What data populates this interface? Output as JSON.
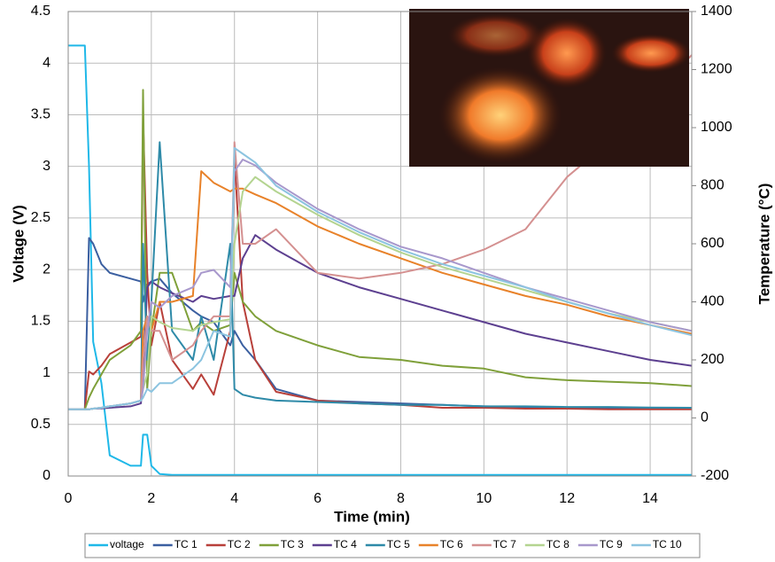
{
  "chart_data": {
    "type": "line",
    "x_label": "Time (min)",
    "y_label": "Voltage (V)",
    "y2_label": "Temperature (°C)",
    "x": [
      0,
      0.4,
      0.5,
      0.6,
      0.8,
      1,
      1.5,
      1.75,
      1.8,
      1.9,
      2,
      2.2,
      2.5,
      3,
      3.2,
      3.5,
      3.9,
      4,
      4.2,
      4.5,
      5,
      6,
      7,
      8,
      9,
      10,
      11,
      12,
      13,
      14,
      15
    ],
    "xlim": [
      0,
      15
    ],
    "xticks": [
      0,
      2,
      4,
      6,
      8,
      10,
      12,
      14
    ],
    "ylim": [
      0,
      4.5
    ],
    "yticks": [
      0,
      0.5,
      1,
      1.5,
      2,
      2.5,
      3,
      3.5,
      4,
      4.5
    ],
    "y2lim": [
      -200,
      1400
    ],
    "y2ticks": [
      -200,
      0,
      200,
      400,
      600,
      800,
      1000,
      1200,
      1400
    ],
    "grid": true,
    "legend": "bottom",
    "series": [
      {
        "name": "voltage",
        "color": "#1fb8e8",
        "values": [
          4.17,
          4.17,
          3.0,
          1.3,
          0.9,
          0.2,
          0.1,
          0.1,
          0.4,
          0.4,
          0.1,
          0.02,
          0.01,
          0.01,
          0.01,
          0.01,
          0.01,
          0.01,
          0.01,
          0.01,
          0.01,
          0.01,
          0.01,
          0.01,
          0.01,
          0.01,
          0.01,
          0.01,
          0.01,
          0.01,
          0.01
        ]
      },
      {
        "name": "TC 1",
        "color": "#3b5fa0",
        "axis": "y2",
        "values": [
          30,
          30,
          620,
          600,
          530,
          500,
          480,
          470,
          400,
          460,
          470,
          480,
          430,
          370,
          350,
          330,
          250,
          300,
          250,
          200,
          100,
          60,
          55,
          50,
          45,
          40,
          38,
          36,
          35,
          34,
          33
        ]
      },
      {
        "name": "TC 2",
        "color": "#b8403a",
        "axis": "y2",
        "values": [
          30,
          30,
          160,
          150,
          180,
          220,
          260,
          280,
          1040,
          500,
          250,
          400,
          200,
          100,
          150,
          80,
          300,
          900,
          400,
          200,
          90,
          60,
          50,
          45,
          35,
          35,
          32,
          32,
          30,
          30,
          30
        ]
      },
      {
        "name": "TC 3",
        "color": "#7fa03a",
        "axis": "y2",
        "values": [
          30,
          30,
          70,
          100,
          150,
          200,
          250,
          300,
          1130,
          100,
          300,
          500,
          500,
          300,
          330,
          300,
          320,
          500,
          400,
          350,
          300,
          250,
          210,
          200,
          180,
          170,
          140,
          130,
          125,
          120,
          110
        ]
      },
      {
        "name": "TC 4",
        "color": "#5d4090",
        "axis": "y2",
        "values": [
          30,
          30,
          30,
          32,
          33,
          35,
          40,
          50,
          150,
          450,
          470,
          450,
          430,
          400,
          420,
          410,
          420,
          420,
          550,
          630,
          580,
          500,
          450,
          410,
          370,
          330,
          290,
          260,
          230,
          200,
          180
        ]
      },
      {
        "name": "TC 5",
        "color": "#2e8aa8",
        "axis": "y2",
        "values": [
          30,
          30,
          30,
          32,
          35,
          40,
          50,
          60,
          600,
          200,
          400,
          950,
          300,
          200,
          350,
          200,
          600,
          100,
          80,
          70,
          60,
          55,
          50,
          45,
          45,
          40,
          40,
          38,
          38,
          36,
          35
        ]
      },
      {
        "name": "TC 6",
        "color": "#e8822a",
        "axis": "y2",
        "values": [
          30,
          30,
          30,
          32,
          35,
          40,
          50,
          60,
          300,
          350,
          300,
          400,
          400,
          420,
          850,
          810,
          780,
          790,
          790,
          770,
          740,
          660,
          600,
          550,
          500,
          460,
          420,
          390,
          350,
          320,
          290
        ]
      },
      {
        "name": "TC 7",
        "color": "#d49090",
        "axis": "y2",
        "values": [
          30,
          30,
          30,
          32,
          35,
          40,
          50,
          60,
          200,
          350,
          300,
          300,
          200,
          250,
          300,
          350,
          350,
          950,
          600,
          600,
          650,
          500,
          480,
          500,
          530,
          580,
          650,
          830,
          950,
          1100,
          1250
        ]
      },
      {
        "name": "TC 8",
        "color": "#b4d490",
        "axis": "y2",
        "values": [
          30,
          30,
          30,
          32,
          35,
          40,
          50,
          60,
          100,
          150,
          350,
          330,
          310,
          300,
          320,
          330,
          340,
          600,
          780,
          830,
          780,
          700,
          630,
          570,
          520,
          480,
          440,
          400,
          360,
          330,
          300
        ]
      },
      {
        "name": "TC 9",
        "color": "#a898cc",
        "axis": "y2",
        "values": [
          30,
          30,
          30,
          32,
          35,
          40,
          50,
          60,
          100,
          300,
          400,
          380,
          420,
          450,
          500,
          510,
          450,
          850,
          890,
          870,
          810,
          720,
          650,
          590,
          550,
          500,
          450,
          410,
          370,
          330,
          300
        ]
      },
      {
        "name": "TC 10",
        "color": "#8cc4e0",
        "axis": "y2",
        "values": [
          30,
          30,
          30,
          32,
          35,
          40,
          50,
          60,
          70,
          100,
          90,
          120,
          120,
          170,
          200,
          300,
          280,
          930,
          910,
          880,
          800,
          710,
          640,
          580,
          530,
          490,
          450,
          400,
          360,
          320,
          285
        ]
      }
    ]
  }
}
